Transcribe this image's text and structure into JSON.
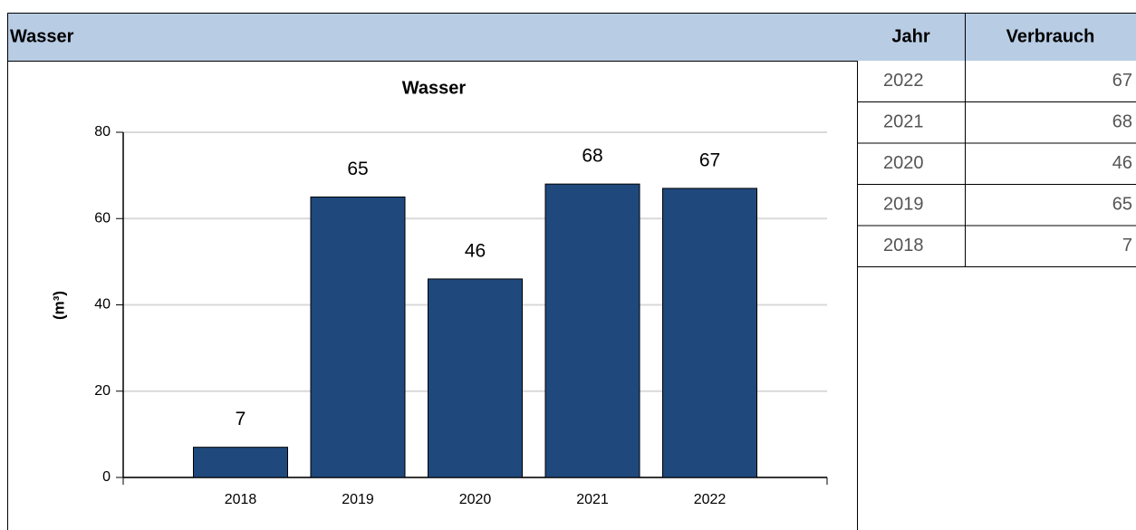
{
  "header": {
    "title": "Wasser"
  },
  "chart_data": {
    "type": "bar",
    "title": "Wasser",
    "y_label": "(m³)",
    "categories": [
      "2018",
      "2019",
      "2020",
      "2021",
      "2022"
    ],
    "values": [
      7,
      65,
      46,
      68,
      67
    ],
    "color": "#1f497d",
    "ylim": [
      0,
      80
    ],
    "yticks": [
      0,
      20,
      40,
      60,
      80
    ],
    "grid": true
  },
  "table": {
    "columns": [
      "Jahr",
      "Verbrauch"
    ],
    "rows": [
      [
        "2022",
        67
      ],
      [
        "2021",
        68
      ],
      [
        "2020",
        46
      ],
      [
        "2019",
        65
      ],
      [
        "2018",
        7
      ]
    ]
  }
}
